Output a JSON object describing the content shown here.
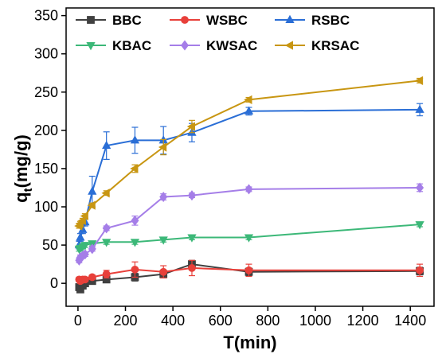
{
  "chart_data": {
    "type": "line",
    "xlabel": "T(min)",
    "ylabel_main": "q",
    "ylabel_sub": "t",
    "ylabel_unit": "(mg/g)",
    "xlim": [
      -50,
      1500
    ],
    "ylim": [
      -30,
      360
    ],
    "x_ticks": [
      0,
      200,
      400,
      600,
      800,
      1000,
      1200,
      1400
    ],
    "y_ticks": [
      0,
      50,
      100,
      150,
      200,
      250,
      300,
      350
    ],
    "grid": false,
    "legend_position": "top-left",
    "x": [
      5,
      10,
      20,
      30,
      60,
      120,
      240,
      360,
      480,
      720,
      1440
    ],
    "series": [
      {
        "name": "BBC",
        "color": "#404040",
        "marker": "square",
        "values": [
          -5,
          -8,
          -3,
          0,
          3,
          5,
          8,
          12,
          25,
          15,
          16
        ],
        "errors": [
          3,
          3,
          3,
          3,
          3,
          3,
          5,
          5,
          5,
          5,
          5
        ]
      },
      {
        "name": "WSBC",
        "color": "#e8403a",
        "marker": "circle",
        "values": [
          5,
          3,
          5,
          5,
          8,
          12,
          18,
          15,
          20,
          17,
          17
        ],
        "errors": [
          3,
          3,
          3,
          3,
          3,
          5,
          10,
          8,
          10,
          8,
          8
        ]
      },
      {
        "name": "RSBC",
        "color": "#2a6ed6",
        "marker": "triangle-up",
        "values": [
          50,
          60,
          70,
          80,
          120,
          180,
          187,
          187,
          197,
          225,
          227
        ],
        "errors": [
          5,
          5,
          5,
          5,
          20,
          18,
          17,
          18,
          12,
          5,
          8
        ]
      },
      {
        "name": "KBAC",
        "color": "#3cb878",
        "marker": "triangle-down",
        "values": [
          45,
          46,
          48,
          50,
          52,
          54,
          54,
          57,
          60,
          60,
          77
        ],
        "errors": [
          3,
          3,
          3,
          3,
          3,
          3,
          3,
          3,
          3,
          3,
          3
        ]
      },
      {
        "name": "KWSAC",
        "color": "#a57ee8",
        "marker": "diamond",
        "values": [
          30,
          34,
          36,
          38,
          45,
          72,
          82,
          113,
          115,
          123,
          125
        ],
        "errors": [
          3,
          3,
          3,
          3,
          3,
          3,
          6,
          4,
          3,
          3,
          5
        ]
      },
      {
        "name": "KRSAC",
        "color": "#c89612",
        "marker": "triangle-left",
        "values": [
          75,
          78,
          82,
          88,
          102,
          118,
          150,
          178,
          205,
          240,
          265
        ],
        "errors": [
          3,
          3,
          3,
          3,
          3,
          3,
          5,
          10,
          8,
          3,
          3
        ]
      }
    ]
  }
}
